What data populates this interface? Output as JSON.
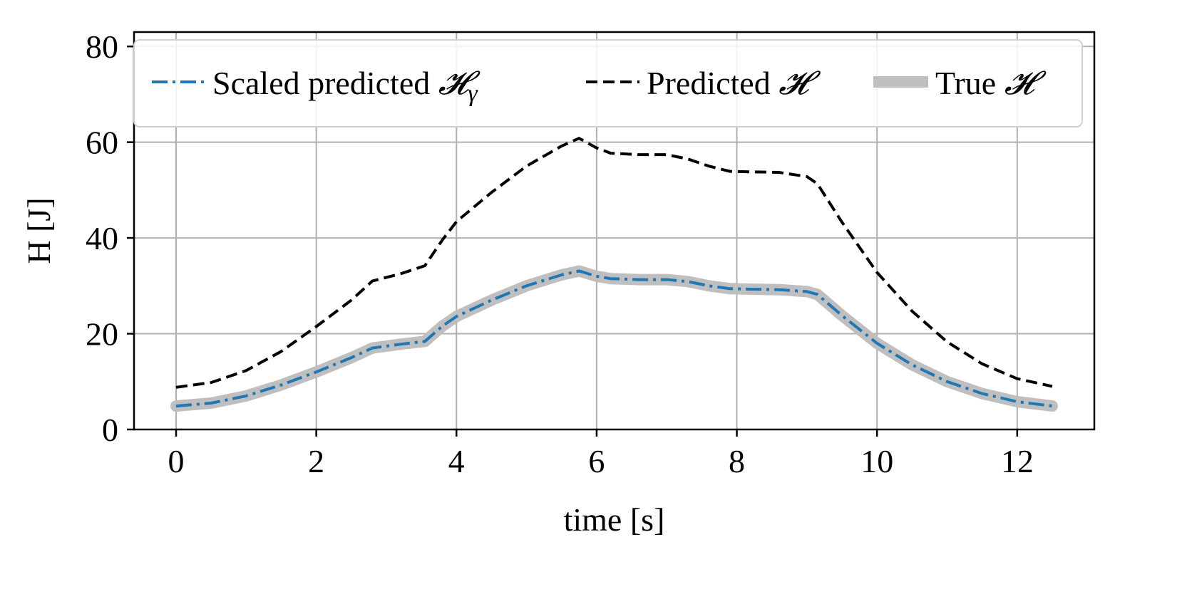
{
  "chart_data": {
    "type": "line",
    "title": "",
    "xlabel": "time [s]",
    "ylabel": "H [J]",
    "xlim": [
      -0.6,
      13.1
    ],
    "ylim": [
      0,
      83
    ],
    "xticks": [
      0,
      2,
      4,
      6,
      8,
      10,
      12
    ],
    "yticks": [
      0,
      20,
      40,
      60,
      80
    ],
    "xtick_labels": [
      "0",
      "2",
      "4",
      "6",
      "8",
      "10",
      "12"
    ],
    "ytick_labels": [
      "0",
      "20",
      "40",
      "60",
      "80"
    ],
    "grid": true,
    "legend_position": "top",
    "x": [
      0,
      0.5,
      1,
      1.5,
      2,
      2.5,
      2.8,
      3.2,
      3.55,
      3.8,
      4,
      4.5,
      5,
      5.5,
      5.75,
      6,
      6.2,
      6.6,
      7,
      7.3,
      7.6,
      7.9,
      8.2,
      8.6,
      9,
      9.15,
      9.5,
      10,
      10.5,
      11,
      11.5,
      12,
      12.5
    ],
    "series": [
      {
        "name": "Scaled predicted 𝓗̃γ",
        "style": "dashdot",
        "color": "#1f77b4",
        "values": [
          4.9,
          5.5,
          7.0,
          9.3,
          12.0,
          15.0,
          17.0,
          17.8,
          18.4,
          21.6,
          23.6,
          27.0,
          30.0,
          32.3,
          33.1,
          32.0,
          31.5,
          31.3,
          31.3,
          30.9,
          30.0,
          29.4,
          29.3,
          29.2,
          28.8,
          28.2,
          23.8,
          18.0,
          13.5,
          10.0,
          7.5,
          5.8,
          4.9
        ]
      },
      {
        "name": "Predicted 𝓗̃",
        "style": "dashed",
        "color": "#000000",
        "values": [
          8.8,
          9.8,
          12.3,
          16.3,
          21.5,
          27.0,
          31.0,
          32.5,
          34.2,
          39.6,
          43.4,
          49.5,
          55.0,
          59.2,
          60.8,
          58.8,
          57.7,
          57.4,
          57.4,
          56.5,
          55.0,
          53.9,
          53.8,
          53.7,
          52.8,
          51.3,
          43.3,
          32.8,
          24.7,
          18.3,
          13.7,
          10.6,
          9.0
        ]
      },
      {
        "name": "True 𝓗",
        "style": "solid-thick",
        "color": "#bfbfbf",
        "values": [
          4.9,
          5.5,
          7.0,
          9.3,
          12.0,
          15.0,
          17.0,
          17.8,
          18.4,
          21.6,
          23.6,
          27.0,
          30.0,
          32.3,
          33.1,
          32.0,
          31.5,
          31.3,
          31.3,
          30.9,
          30.0,
          29.4,
          29.3,
          29.2,
          28.8,
          28.2,
          23.8,
          18.0,
          13.5,
          10.0,
          7.5,
          5.8,
          4.9
        ]
      }
    ]
  },
  "legend": {
    "entries": [
      {
        "prefix": "Scaled predicted ",
        "symbol": "𝓗",
        "sub": "γ"
      },
      {
        "prefix": "Predicted ",
        "symbol": "𝓗",
        "sub": ""
      },
      {
        "prefix": "True ",
        "symbol": "𝓗",
        "sub": ""
      }
    ]
  }
}
